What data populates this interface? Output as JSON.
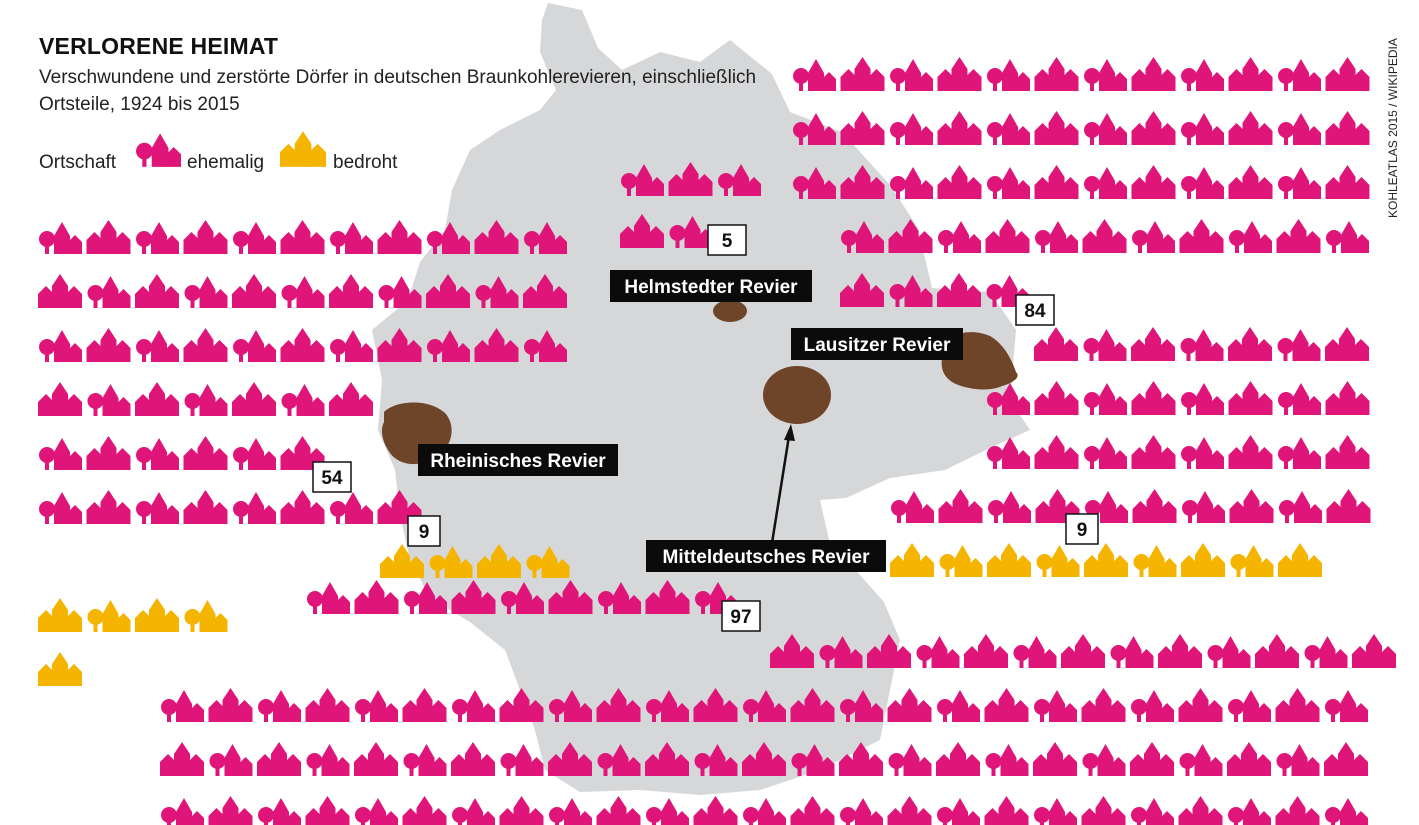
{
  "header": {
    "title": "VERLORENE HEIMAT",
    "subtitle": "Verschwundene und zerstörte Dörfer in deutschen Braunkohlerevieren, einschließlich Ortsteile, 1924 bis 2015",
    "source": "KOHLEATLAS 2015 / WIKIPEDIA"
  },
  "legend": {
    "label": "Ortschaft",
    "former_label": "ehemalig",
    "threatened_label": "bedroht"
  },
  "colors": {
    "former": "#e0157a",
    "threatened": "#f5b400",
    "map": "#d6d7d9",
    "mining_area": "#6e4529",
    "label_bg": "#0b0b0b",
    "label_text": "#ffffff"
  },
  "chart_data": {
    "type": "pictogram",
    "unit": "Ortschaft",
    "regions": [
      {
        "name": "Helmstedter Revier",
        "former": 5,
        "threatened": 0,
        "former_label": "5"
      },
      {
        "name": "Lausitzer Revier",
        "former": 84,
        "threatened": 9,
        "former_label": "84",
        "threatened_label": "9"
      },
      {
        "name": "Rheinisches Revier",
        "former": 54,
        "threatened": 9,
        "former_label": "54",
        "threatened_label": "9"
      },
      {
        "name": "Mitteldeutsches Revier",
        "former": 97,
        "threatened": 0,
        "former_label": "97"
      }
    ]
  }
}
